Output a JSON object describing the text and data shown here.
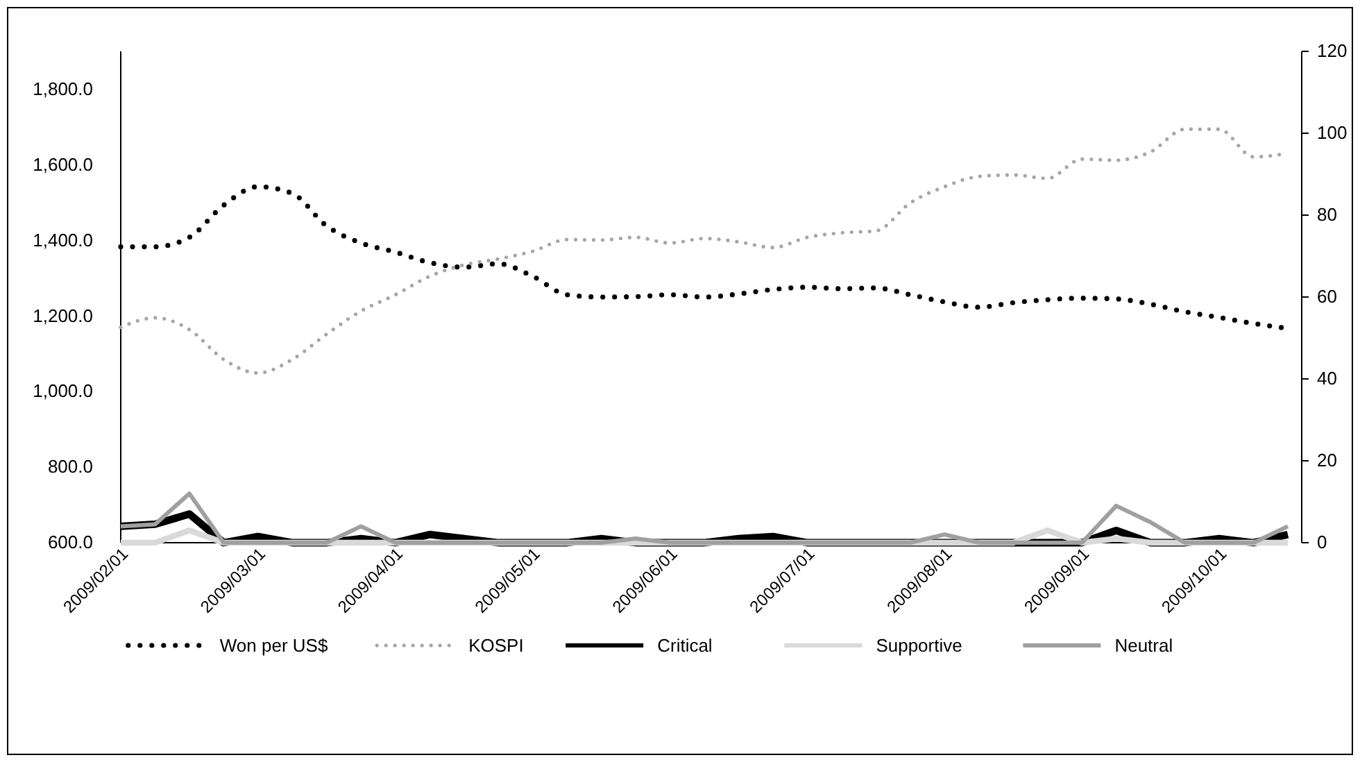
{
  "chart_data": {
    "type": "line",
    "categories": [
      "2009/02/01",
      null,
      null,
      null,
      "2009/03/01",
      null,
      null,
      null,
      "2009/04/01",
      null,
      null,
      null,
      "2009/05/01",
      null,
      null,
      null,
      "2009/06/01",
      null,
      null,
      null,
      "2009/07/01",
      null,
      null,
      null,
      "2009/08/01",
      null,
      null,
      null,
      "2009/09/01",
      null,
      null,
      null,
      "2009/10/01",
      null,
      null
    ],
    "series": [
      {
        "name": "Won per US$",
        "color": "#000000",
        "line_style": "dotted",
        "values": [
          1383,
          1383,
          1408,
          1493,
          1542,
          1524,
          1438,
          1393,
          1369,
          1341,
          1329,
          1338,
          1305,
          1256,
          1250,
          1251,
          1256,
          1250,
          1258,
          1270,
          1276,
          1272,
          1274,
          1256,
          1237,
          1223,
          1235,
          1243,
          1247,
          1245,
          1231,
          1211,
          1196,
          1180,
          1167
        ]
      },
      {
        "name": "KOSPI",
        "color": "#a6a6a6",
        "line_style": "dotted",
        "values": [
          1170,
          1195,
          1164,
          1085,
          1049,
          1085,
          1152,
          1213,
          1256,
          1305,
          1335,
          1351,
          1371,
          1402,
          1401,
          1408,
          1393,
          1405,
          1396,
          1381,
          1408,
          1420,
          1425,
          1499,
          1542,
          1569,
          1573,
          1564,
          1615,
          1612,
          1634,
          1694,
          1694,
          1621,
          1630
        ]
      },
      {
        "name": "Critical",
        "color": "#000000",
        "line_style": "solid",
        "axis": "y2",
        "values": [
          4,
          4.5,
          7,
          0,
          1.5,
          0,
          0,
          1,
          0,
          2,
          1,
          0,
          0,
          0,
          1,
          0,
          0,
          0,
          1,
          1.5,
          0,
          0,
          0,
          0,
          0,
          0,
          0,
          0,
          0,
          3,
          0,
          0,
          1,
          0,
          2
        ]
      },
      {
        "name": "Supportive",
        "color": "#d9d9d9",
        "line_style": "solid",
        "axis": "y2",
        "values": [
          0,
          0,
          3,
          0,
          0,
          0,
          0,
          0,
          0,
          0,
          0,
          0,
          0,
          0,
          0,
          0,
          0,
          0,
          0,
          0,
          0,
          0,
          0,
          0,
          0,
          0,
          0,
          3,
          0,
          1,
          0,
          0,
          0,
          0,
          0
        ]
      },
      {
        "name": "Neutral",
        "color": "#a0a0a0",
        "line_style": "solid",
        "axis": "y2",
        "values": [
          4,
          4.5,
          12,
          0,
          0,
          0,
          0,
          4,
          0,
          0,
          0,
          0,
          0,
          0,
          0,
          1,
          0,
          0,
          0,
          0,
          0,
          0,
          0,
          0,
          2,
          0,
          0,
          0,
          0,
          9,
          5,
          0,
          0,
          0,
          4
        ]
      }
    ],
    "ylim": [
      600,
      1900
    ],
    "yticks": [
      {
        "value": 600,
        "label": "600.0"
      },
      {
        "value": 800,
        "label": "800.0"
      },
      {
        "value": 1000,
        "label": "1,000.0"
      },
      {
        "value": 1200,
        "label": "1,200.0"
      },
      {
        "value": 1400,
        "label": "1,400.0"
      },
      {
        "value": 1600,
        "label": "1,600.0"
      },
      {
        "value": 1800,
        "label": "1,800.0"
      }
    ],
    "y2lim": [
      0,
      120
    ],
    "y2ticks": [
      0,
      20,
      40,
      60,
      80,
      100,
      120
    ],
    "grid": false,
    "legend": "bottom",
    "marker": "none"
  }
}
